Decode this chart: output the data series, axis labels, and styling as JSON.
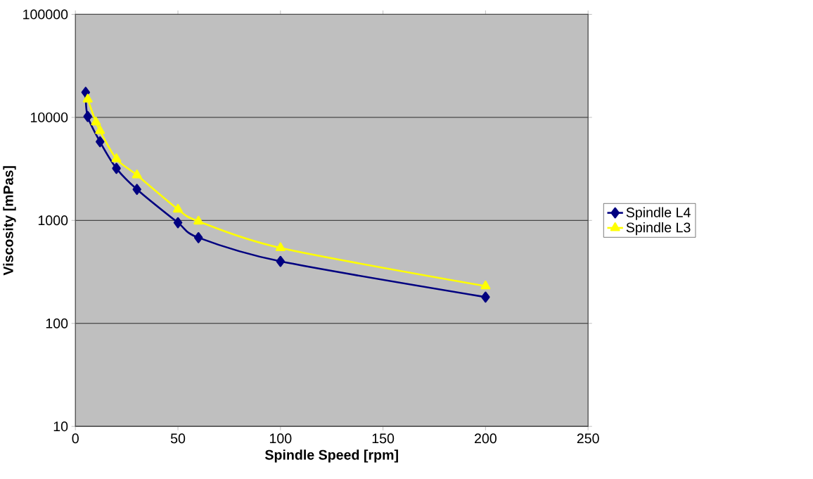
{
  "chart_data": {
    "type": "line",
    "xlabel": "Spindle Speed [rpm]",
    "ylabel": "Viscosity [mPas]",
    "log": "y",
    "xlim": [
      0,
      250
    ],
    "xticks": [
      0,
      50,
      100,
      150,
      200,
      250
    ],
    "ylim": [
      10,
      100000
    ],
    "yticks": [
      10,
      100,
      1000,
      10000,
      100000
    ],
    "grid": "y",
    "legend": "right",
    "series": [
      {
        "name": "Spindle L4",
        "color": "#000080",
        "marker": "diamond",
        "x": [
          5,
          6,
          12,
          20,
          30,
          50,
          60,
          100,
          200
        ],
        "values": [
          17500,
          10200,
          5800,
          3200,
          2000,
          950,
          680,
          400,
          180
        ]
      },
      {
        "name": "Spindle L3",
        "color": "#ffff00",
        "marker": "triangle",
        "x": [
          6,
          10,
          12,
          20,
          30,
          50,
          60,
          100,
          200
        ],
        "values": [
          15000,
          9000,
          7400,
          3950,
          2750,
          1280,
          980,
          540,
          230
        ]
      }
    ]
  }
}
